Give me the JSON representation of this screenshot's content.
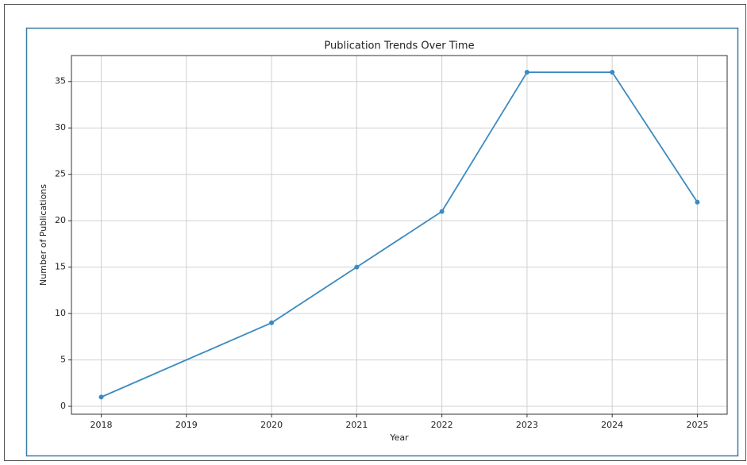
{
  "chart_data": {
    "type": "line",
    "title": "Publication Trends Over Time",
    "x_label": "Year",
    "y_label": "Number of Publications",
    "x": [
      2018,
      2020,
      2021,
      2022,
      2023,
      2024,
      2025
    ],
    "series": [
      {
        "name": "Publications",
        "color": "#3b8bc2",
        "values": [
          1,
          9,
          15,
          21,
          36,
          36,
          22
        ]
      }
    ],
    "xlim": [
      2017.65,
      2025.35
    ],
    "xticks": [
      2018,
      2019,
      2020,
      2021,
      2022,
      2023,
      2024,
      2025
    ],
    "ylim": [
      -0.85,
      37.8
    ],
    "yticks": [
      0,
      5,
      10,
      15,
      20,
      25,
      30,
      35
    ],
    "grid": true
  }
}
